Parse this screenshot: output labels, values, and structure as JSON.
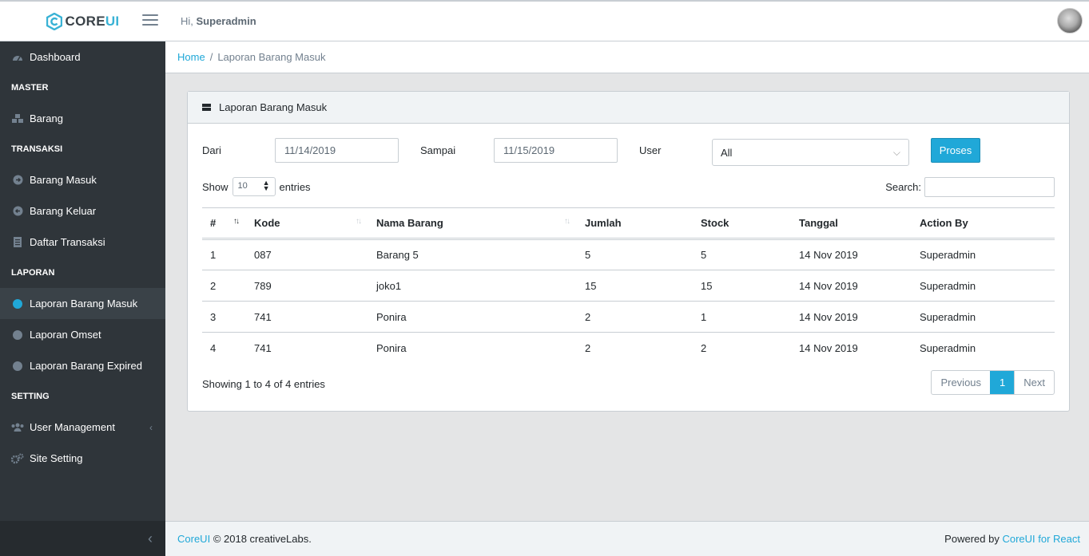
{
  "header": {
    "brand_main": "CORE",
    "brand_accent": "UI",
    "greeting": "Hi,",
    "user": "Superadmin"
  },
  "sidebar": {
    "items": [
      {
        "type": "item",
        "label": "Dashboard",
        "icon": "speedometer-icon"
      },
      {
        "type": "title",
        "label": "MASTER"
      },
      {
        "type": "item",
        "label": "Barang",
        "icon": "cubes-icon"
      },
      {
        "type": "title",
        "label": "TRANSAKSI"
      },
      {
        "type": "item",
        "label": "Barang Masuk",
        "icon": "arrow-circle-right-icon"
      },
      {
        "type": "item",
        "label": "Barang Keluar",
        "icon": "arrow-circle-left-icon"
      },
      {
        "type": "item",
        "label": "Daftar Transaksi",
        "icon": "list-icon"
      },
      {
        "type": "title",
        "label": "LAPORAN"
      },
      {
        "type": "item",
        "label": "Laporan Barang Masuk",
        "icon": "dot-icon",
        "active": true
      },
      {
        "type": "item",
        "label": "Laporan Omset",
        "icon": "dot-icon"
      },
      {
        "type": "item",
        "label": "Laporan Barang Expired",
        "icon": "dot-icon"
      },
      {
        "type": "title",
        "label": "SETTING"
      },
      {
        "type": "item",
        "label": "User Management",
        "icon": "users-icon",
        "chevron": "‹"
      },
      {
        "type": "item",
        "label": "Site Setting",
        "icon": "gears-icon"
      }
    ],
    "minimizer": "‹"
  },
  "breadcrumb": {
    "home": "Home",
    "sep": "/",
    "current": "Laporan Barang Masuk"
  },
  "card": {
    "title": "Laporan Barang Masuk",
    "filters": {
      "dari_label": "Dari",
      "dari_value": "11/14/2019",
      "sampai_label": "Sampai",
      "sampai_value": "11/15/2019",
      "user_label": "User",
      "user_value": "All",
      "button": "Proses"
    },
    "length": {
      "show": "Show",
      "value": "10",
      "entries": "entries"
    },
    "search_label": "Search:",
    "table": {
      "columns": [
        "#",
        "Kode",
        "Nama Barang",
        "Jumlah",
        "Stock",
        "Tanggal",
        "Action By"
      ],
      "rows": [
        [
          "1",
          "087",
          "Barang 5",
          "5",
          "5",
          "14 Nov 2019",
          "Superadmin"
        ],
        [
          "2",
          "789",
          "joko1",
          "15",
          "15",
          "14 Nov 2019",
          "Superadmin"
        ],
        [
          "3",
          "741",
          "Ponira",
          "2",
          "1",
          "14 Nov 2019",
          "Superadmin"
        ],
        [
          "4",
          "741",
          "Ponira",
          "2",
          "2",
          "14 Nov 2019",
          "Superadmin"
        ]
      ]
    },
    "info": "Showing 1 to 4 of 4 entries",
    "pagination": {
      "previous": "Previous",
      "current": "1",
      "next": "Next"
    }
  },
  "footer": {
    "brand_link": "CoreUI",
    "copyright": "© 2018 creativeLabs.",
    "powered": "Powered by",
    "powered_link": "CoreUI for React"
  },
  "colors": {
    "primary": "#20a8d8",
    "sidebar": "#2f353a",
    "sidebar_active": "#3a4248"
  }
}
